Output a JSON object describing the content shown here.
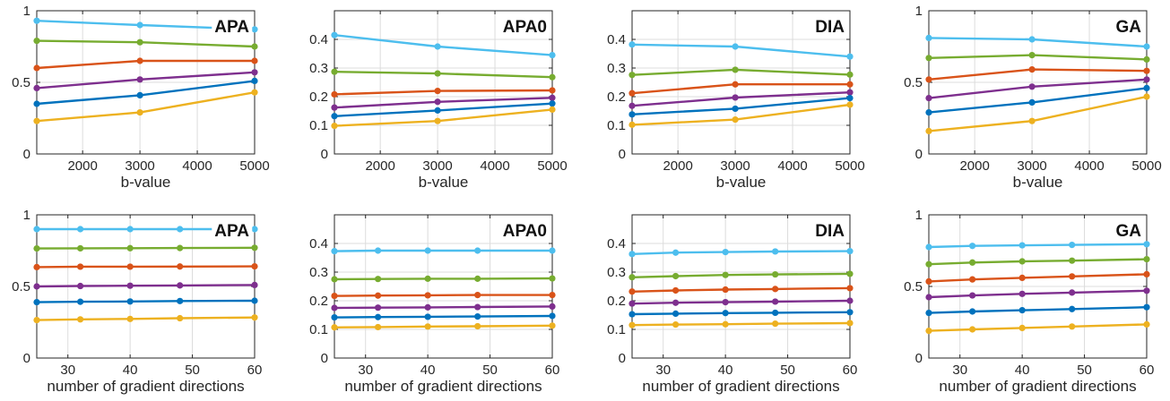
{
  "colors": {
    "light_blue": "#4DBEEE",
    "green": "#77AC30",
    "orange": "#D95319",
    "purple": "#7E2F8E",
    "blue": "#0072BD",
    "yellow": "#EDB120"
  },
  "chart_data": [
    {
      "type": "line",
      "title": "APA",
      "xlabel": "b-value",
      "x": [
        1200,
        3000,
        5000
      ],
      "xlim": [
        1200,
        5000
      ],
      "ylim": [
        0,
        1
      ],
      "xticks": [
        2000,
        3000,
        4000,
        5000
      ],
      "xtick_labels": [
        "2000",
        "3000",
        "4000",
        "5000"
      ],
      "yticks": [
        0,
        0.5,
        1
      ],
      "ytick_labels": [
        "0",
        "0.5",
        "1"
      ],
      "grid": true,
      "marker": "circle",
      "series": [
        {
          "color": "#4DBEEE",
          "values": [
            0.93,
            0.9,
            0.87
          ]
        },
        {
          "color": "#77AC30",
          "values": [
            0.79,
            0.78,
            0.75
          ]
        },
        {
          "color": "#D95319",
          "values": [
            0.6,
            0.65,
            0.65
          ]
        },
        {
          "color": "#7E2F8E",
          "values": [
            0.46,
            0.52,
            0.57
          ]
        },
        {
          "color": "#0072BD",
          "values": [
            0.35,
            0.41,
            0.51
          ]
        },
        {
          "color": "#EDB120",
          "values": [
            0.23,
            0.29,
            0.43
          ]
        }
      ]
    },
    {
      "type": "line",
      "title": "APA0",
      "xlabel": "b-value",
      "x": [
        1200,
        3000,
        5000
      ],
      "xlim": [
        1200,
        5000
      ],
      "ylim": [
        0,
        0.5
      ],
      "xticks": [
        2000,
        3000,
        4000,
        5000
      ],
      "xtick_labels": [
        "2000",
        "3000",
        "4000",
        "5000"
      ],
      "yticks": [
        0,
        0.1,
        0.2,
        0.3,
        0.4
      ],
      "ytick_labels": [
        "0",
        "0.1",
        "0.2",
        "0.3",
        "0.4"
      ],
      "grid": true,
      "marker": "circle",
      "series": [
        {
          "color": "#4DBEEE",
          "values": [
            0.415,
            0.375,
            0.345
          ]
        },
        {
          "color": "#77AC30",
          "values": [
            0.287,
            0.281,
            0.268
          ]
        },
        {
          "color": "#D95319",
          "values": [
            0.208,
            0.22,
            0.222
          ]
        },
        {
          "color": "#7E2F8E",
          "values": [
            0.162,
            0.182,
            0.196
          ]
        },
        {
          "color": "#0072BD",
          "values": [
            0.132,
            0.152,
            0.176
          ]
        },
        {
          "color": "#EDB120",
          "values": [
            0.098,
            0.115,
            0.155
          ]
        }
      ]
    },
    {
      "type": "line",
      "title": "DIA",
      "xlabel": "b-value",
      "x": [
        1200,
        3000,
        5000
      ],
      "xlim": [
        1200,
        5000
      ],
      "ylim": [
        0,
        0.5
      ],
      "xticks": [
        2000,
        3000,
        4000,
        5000
      ],
      "xtick_labels": [
        "2000",
        "3000",
        "4000",
        "5000"
      ],
      "yticks": [
        0,
        0.1,
        0.2,
        0.3,
        0.4
      ],
      "ytick_labels": [
        "0",
        "0.1",
        "0.2",
        "0.3",
        "0.4"
      ],
      "grid": true,
      "marker": "circle",
      "series": [
        {
          "color": "#4DBEEE",
          "values": [
            0.382,
            0.375,
            0.34
          ]
        },
        {
          "color": "#77AC30",
          "values": [
            0.276,
            0.294,
            0.277
          ]
        },
        {
          "color": "#D95319",
          "values": [
            0.212,
            0.243,
            0.243
          ]
        },
        {
          "color": "#7E2F8E",
          "values": [
            0.168,
            0.197,
            0.215
          ]
        },
        {
          "color": "#0072BD",
          "values": [
            0.138,
            0.158,
            0.195
          ]
        },
        {
          "color": "#EDB120",
          "values": [
            0.102,
            0.12,
            0.172
          ]
        }
      ]
    },
    {
      "type": "line",
      "title": "GA",
      "xlabel": "b-value",
      "x": [
        1200,
        3000,
        5000
      ],
      "xlim": [
        1200,
        5000
      ],
      "ylim": [
        0,
        1
      ],
      "xticks": [
        2000,
        3000,
        4000,
        5000
      ],
      "xtick_labels": [
        "2000",
        "3000",
        "4000",
        "5000"
      ],
      "yticks": [
        0,
        0.5,
        1
      ],
      "ytick_labels": [
        "0",
        "0.5",
        "1"
      ],
      "grid": true,
      "marker": "circle",
      "series": [
        {
          "color": "#4DBEEE",
          "values": [
            0.81,
            0.8,
            0.75
          ]
        },
        {
          "color": "#77AC30",
          "values": [
            0.67,
            0.69,
            0.66
          ]
        },
        {
          "color": "#D95319",
          "values": [
            0.52,
            0.59,
            0.58
          ]
        },
        {
          "color": "#7E2F8E",
          "values": [
            0.39,
            0.47,
            0.52
          ]
        },
        {
          "color": "#0072BD",
          "values": [
            0.29,
            0.36,
            0.46
          ]
        },
        {
          "color": "#EDB120",
          "values": [
            0.16,
            0.23,
            0.4
          ]
        }
      ]
    },
    {
      "type": "line",
      "title": "APA",
      "xlabel": "number of gradient directions",
      "x": [
        25,
        32,
        40,
        48,
        60
      ],
      "xlim": [
        25,
        60
      ],
      "ylim": [
        0,
        1
      ],
      "xticks": [
        30,
        40,
        50,
        60
      ],
      "xtick_labels": [
        "30",
        "40",
        "50",
        "60"
      ],
      "yticks": [
        0,
        0.5,
        1
      ],
      "ytick_labels": [
        "0",
        "0.5",
        "1"
      ],
      "grid": true,
      "marker": "circle",
      "series": [
        {
          "color": "#4DBEEE",
          "values": [
            0.9,
            0.9,
            0.9,
            0.9,
            0.9
          ]
        },
        {
          "color": "#77AC30",
          "values": [
            0.765,
            0.766,
            0.767,
            0.768,
            0.77
          ]
        },
        {
          "color": "#D95319",
          "values": [
            0.635,
            0.638,
            0.638,
            0.639,
            0.64
          ]
        },
        {
          "color": "#7E2F8E",
          "values": [
            0.5,
            0.503,
            0.505,
            0.507,
            0.51
          ]
        },
        {
          "color": "#0072BD",
          "values": [
            0.39,
            0.393,
            0.395,
            0.398,
            0.4
          ]
        },
        {
          "color": "#EDB120",
          "values": [
            0.265,
            0.27,
            0.273,
            0.278,
            0.283
          ]
        }
      ]
    },
    {
      "type": "line",
      "title": "APA0",
      "xlabel": "number of gradient directions",
      "x": [
        25,
        32,
        40,
        48,
        60
      ],
      "xlim": [
        25,
        60
      ],
      "ylim": [
        0,
        0.5
      ],
      "xticks": [
        30,
        40,
        50,
        60
      ],
      "xtick_labels": [
        "30",
        "40",
        "50",
        "60"
      ],
      "yticks": [
        0,
        0.1,
        0.2,
        0.3,
        0.4
      ],
      "ytick_labels": [
        "0",
        "0.1",
        "0.2",
        "0.3",
        "0.4"
      ],
      "grid": true,
      "marker": "circle",
      "series": [
        {
          "color": "#4DBEEE",
          "values": [
            0.373,
            0.375,
            0.375,
            0.375,
            0.375
          ]
        },
        {
          "color": "#77AC30",
          "values": [
            0.275,
            0.276,
            0.277,
            0.277,
            0.278
          ]
        },
        {
          "color": "#D95319",
          "values": [
            0.217,
            0.218,
            0.219,
            0.22,
            0.22
          ]
        },
        {
          "color": "#7E2F8E",
          "values": [
            0.175,
            0.176,
            0.177,
            0.178,
            0.18
          ]
        },
        {
          "color": "#0072BD",
          "values": [
            0.142,
            0.143,
            0.144,
            0.145,
            0.147
          ]
        },
        {
          "color": "#EDB120",
          "values": [
            0.107,
            0.108,
            0.11,
            0.111,
            0.113
          ]
        }
      ]
    },
    {
      "type": "line",
      "title": "DIA",
      "xlabel": "number of gradient directions",
      "x": [
        25,
        32,
        40,
        48,
        60
      ],
      "xlim": [
        25,
        60
      ],
      "ylim": [
        0,
        0.5
      ],
      "xticks": [
        30,
        40,
        50,
        60
      ],
      "xtick_labels": [
        "30",
        "40",
        "50",
        "60"
      ],
      "yticks": [
        0,
        0.1,
        0.2,
        0.3,
        0.4
      ],
      "ytick_labels": [
        "0",
        "0.1",
        "0.2",
        "0.3",
        "0.4"
      ],
      "grid": true,
      "marker": "circle",
      "series": [
        {
          "color": "#4DBEEE",
          "values": [
            0.363,
            0.368,
            0.37,
            0.372,
            0.373
          ]
        },
        {
          "color": "#77AC30",
          "values": [
            0.282,
            0.286,
            0.29,
            0.292,
            0.294
          ]
        },
        {
          "color": "#D95319",
          "values": [
            0.232,
            0.236,
            0.239,
            0.241,
            0.244
          ]
        },
        {
          "color": "#7E2F8E",
          "values": [
            0.19,
            0.193,
            0.195,
            0.197,
            0.2
          ]
        },
        {
          "color": "#0072BD",
          "values": [
            0.153,
            0.155,
            0.157,
            0.158,
            0.16
          ]
        },
        {
          "color": "#EDB120",
          "values": [
            0.115,
            0.117,
            0.118,
            0.12,
            0.122
          ]
        }
      ]
    },
    {
      "type": "line",
      "title": "GA",
      "xlabel": "number of gradient directions",
      "x": [
        25,
        32,
        40,
        48,
        60
      ],
      "xlim": [
        25,
        60
      ],
      "ylim": [
        0,
        1
      ],
      "xticks": [
        30,
        40,
        50,
        60
      ],
      "xtick_labels": [
        "30",
        "40",
        "50",
        "60"
      ],
      "yticks": [
        0,
        0.5,
        1
      ],
      "ytick_labels": [
        "0",
        "0.5",
        "1"
      ],
      "grid": true,
      "marker": "circle",
      "series": [
        {
          "color": "#4DBEEE",
          "values": [
            0.775,
            0.783,
            0.787,
            0.79,
            0.795
          ]
        },
        {
          "color": "#77AC30",
          "values": [
            0.655,
            0.667,
            0.675,
            0.68,
            0.69
          ]
        },
        {
          "color": "#D95319",
          "values": [
            0.535,
            0.549,
            0.56,
            0.57,
            0.585
          ]
        },
        {
          "color": "#7E2F8E",
          "values": [
            0.425,
            0.437,
            0.448,
            0.457,
            0.47
          ]
        },
        {
          "color": "#0072BD",
          "values": [
            0.315,
            0.325,
            0.334,
            0.342,
            0.355
          ]
        },
        {
          "color": "#EDB120",
          "values": [
            0.19,
            0.2,
            0.21,
            0.22,
            0.235
          ]
        }
      ]
    }
  ]
}
